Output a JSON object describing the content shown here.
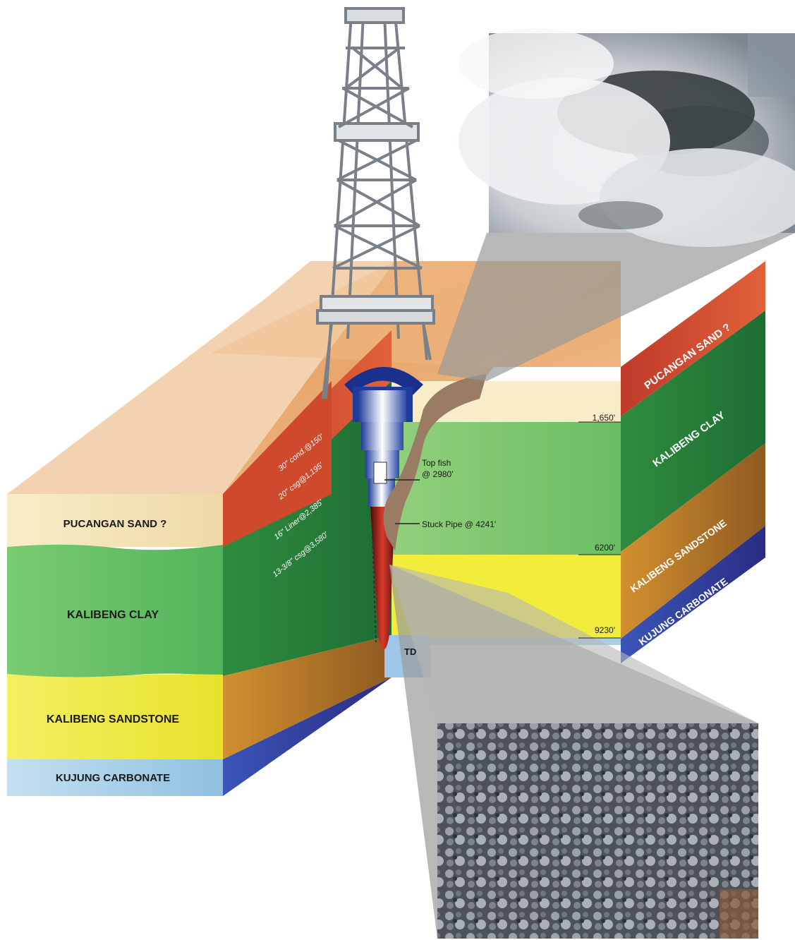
{
  "front_face": {
    "layers": [
      {
        "name": "PUCANGAN SAND ?",
        "color": "#f6e6bb"
      },
      {
        "name": "KALIBENG CLAY",
        "color": "#5fbf63"
      },
      {
        "name": "KALIBENG SANDSTONE",
        "color": "#f2ec3a"
      },
      {
        "name": "KUJUNG CARBONATE",
        "color": "#a9cfe6"
      }
    ]
  },
  "right_face": {
    "layers": [
      {
        "name": "PUCANGAN SAND ?",
        "color": "#d2452c"
      },
      {
        "name": "KALIBENG CLAY",
        "color": "#3a9a49"
      },
      {
        "name": "KALIBENG SANDSTONE",
        "color": "#b8782c"
      },
      {
        "name": "KUJUNG CARBONATE",
        "color": "#2f3f9a"
      }
    ]
  },
  "depths": [
    "1,650'",
    "6200'",
    "9230'"
  ],
  "casing": [
    "30\" cond.@150'",
    "20\" csg@1,195'",
    "16\" Liner@2,385'",
    "13-3/8\" csg@3,580'"
  ],
  "callouts": {
    "top_fish_line1": "Top fish",
    "top_fish_line2": "@ 2980'",
    "stuck_pipe": "Stuck Pipe @ 4241'",
    "td": "TD"
  },
  "photos": {
    "top": "eruption-plume-photo",
    "bottom": "mud-cuttings-photo"
  }
}
